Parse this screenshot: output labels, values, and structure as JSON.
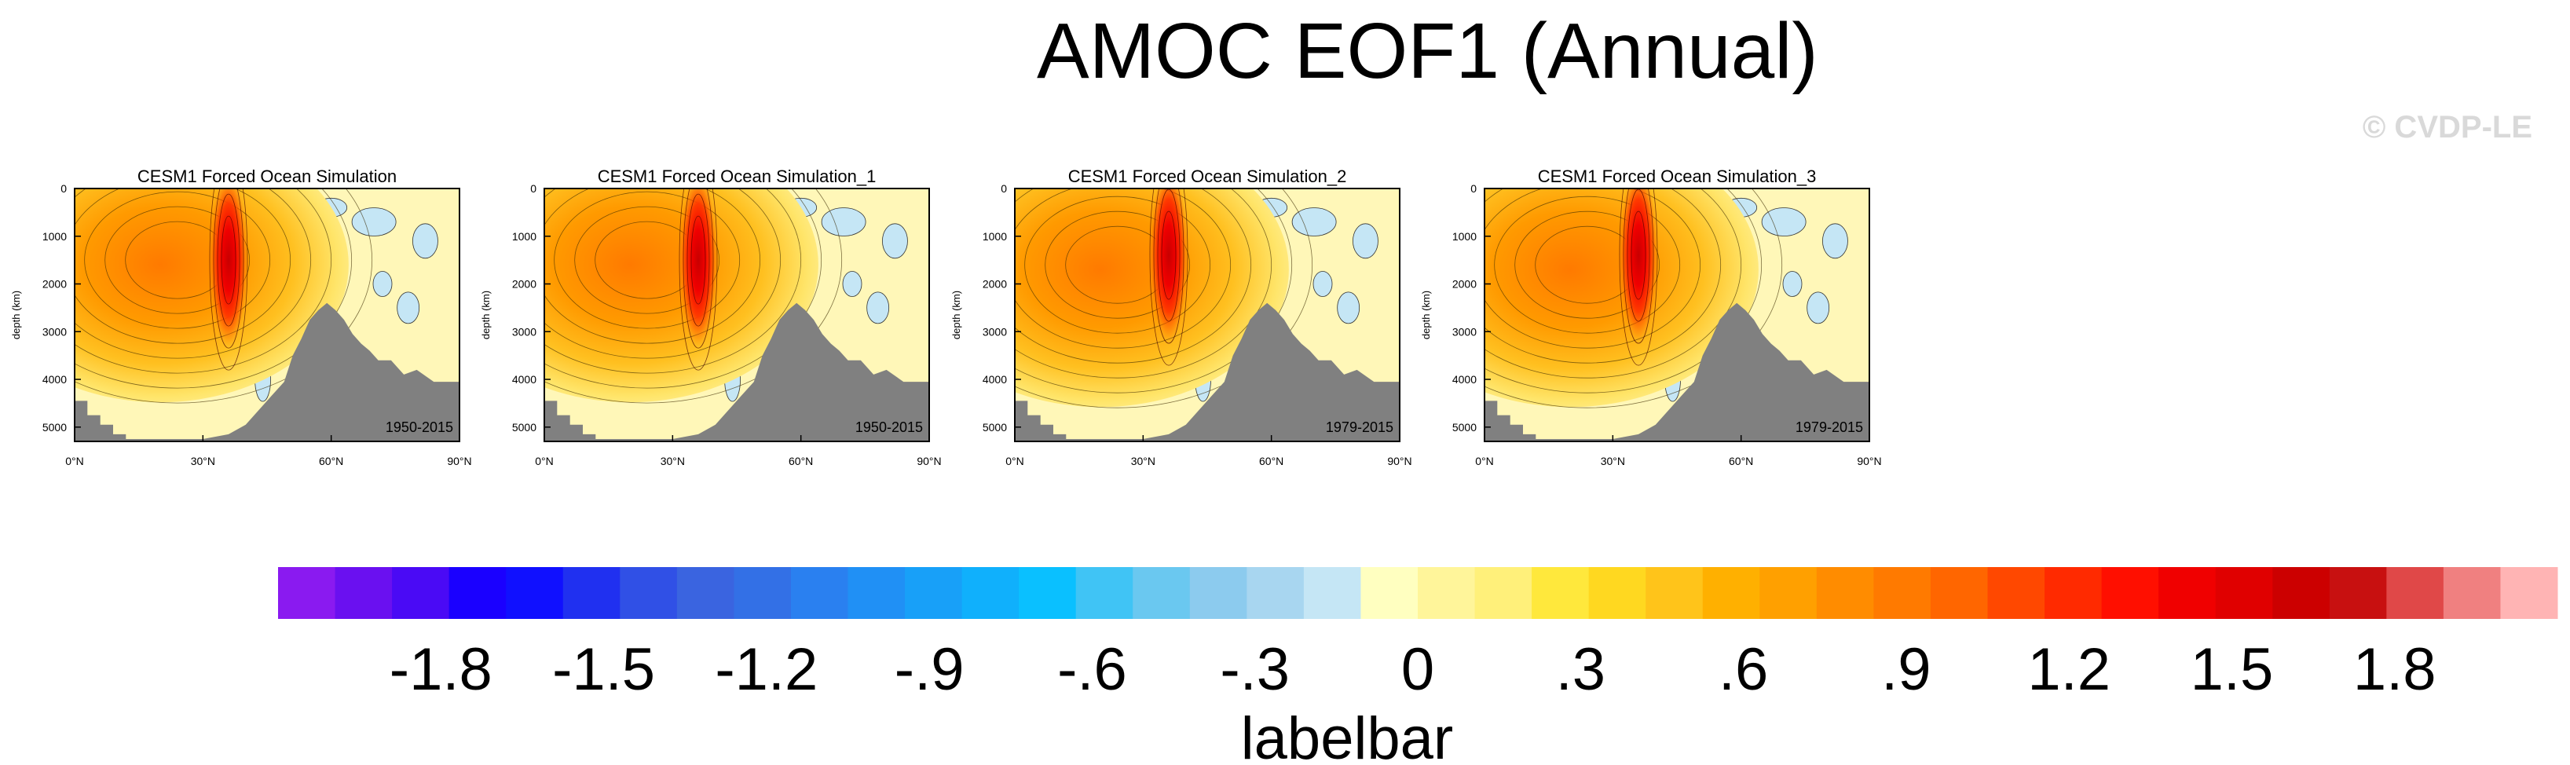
{
  "title": "AMOC EOF1 (Annual)",
  "watermark": "© CVDP-LE",
  "colors": {
    "land": "#808080",
    "positive_ramp": [
      "#ffffc0",
      "#fff280",
      "#ffe135",
      "#ffc91a",
      "#ffb000",
      "#ff9400",
      "#ff7a00",
      "#ff5200",
      "#ff2a00",
      "#f00000",
      "#c80000"
    ],
    "negative_ramp": [
      "#c8e6f5",
      "#a9d7f2",
      "#86c8f0",
      "#5ab4f0"
    ]
  },
  "chart_data": [
    {
      "type": "heatmap",
      "title": "CESM1 Forced Ocean Simulation",
      "period": "1950-2015",
      "xlabel": "",
      "ylabel": "depth (km)",
      "xlim": [
        0,
        90
      ],
      "ylim": [
        5300,
        0
      ],
      "x_ticks": [
        "0°N",
        "30°N",
        "60°N",
        "90°N"
      ],
      "y_ticks": [
        "0",
        "1000",
        "2000",
        "3000",
        "4000",
        "5000"
      ],
      "cell_max": {
        "lat": 36,
        "depth": 1500,
        "value": 1.8
      },
      "broad_max": {
        "lat": 20,
        "depth": 1600,
        "value": 0.9
      }
    },
    {
      "type": "heatmap",
      "title": "CESM1 Forced Ocean Simulation_1",
      "period": "1950-2015",
      "xlabel": "",
      "ylabel": "depth (km)",
      "xlim": [
        0,
        90
      ],
      "ylim": [
        5300,
        0
      ],
      "x_ticks": [
        "0°N",
        "30°N",
        "60°N",
        "90°N"
      ],
      "y_ticks": [
        "0",
        "1000",
        "2000",
        "3000",
        "4000",
        "5000"
      ],
      "cell_max": {
        "lat": 36,
        "depth": 1500,
        "value": 1.7
      },
      "broad_max": {
        "lat": 20,
        "depth": 1600,
        "value": 0.9
      }
    },
    {
      "type": "heatmap",
      "title": "CESM1 Forced Ocean Simulation_2",
      "period": "1979-2015",
      "xlabel": "",
      "ylabel": "depth (km)",
      "xlim": [
        0,
        90
      ],
      "ylim": [
        5300,
        0
      ],
      "x_ticks": [
        "0°N",
        "30°N",
        "60°N",
        "90°N"
      ],
      "y_ticks": [
        "0",
        "1000",
        "2000",
        "3000",
        "4000",
        "5000"
      ],
      "cell_max": {
        "lat": 36,
        "depth": 1400,
        "value": 1.9
      },
      "broad_max": {
        "lat": 20,
        "depth": 1700,
        "value": 1.0
      }
    },
    {
      "type": "heatmap",
      "title": "CESM1 Forced Ocean Simulation_3",
      "period": "1979-2015",
      "xlabel": "",
      "ylabel": "depth (km)",
      "xlim": [
        0,
        90
      ],
      "ylim": [
        5300,
        0
      ],
      "x_ticks": [
        "0°N",
        "30°N",
        "60°N",
        "90°N"
      ],
      "y_ticks": [
        "0",
        "1000",
        "2000",
        "3000",
        "4000",
        "5000"
      ],
      "cell_max": {
        "lat": 36,
        "depth": 1400,
        "value": 1.9
      },
      "broad_max": {
        "lat": 20,
        "depth": 1700,
        "value": 1.0
      }
    }
  ],
  "colorbar": {
    "label": "labelbar",
    "range": [
      -2.1,
      2.1
    ],
    "step": 0.1,
    "tick_labels": [
      "-1.8",
      "-1.5",
      "-1.2",
      "-.9",
      "-.6",
      "-.3",
      "0",
      ".3",
      ".6",
      ".9",
      "1.2",
      "1.5",
      "1.8"
    ],
    "tick_values": [
      -1.8,
      -1.5,
      -1.2,
      -0.9,
      -0.6,
      -0.3,
      0,
      0.3,
      0.6,
      0.9,
      1.2,
      1.5,
      1.8
    ],
    "colors": [
      "#8a1af0",
      "#6a10f0",
      "#4a0af5",
      "#1a00ff",
      "#1010ff",
      "#2030f0",
      "#3050e6",
      "#3a64e0",
      "#3370e6",
      "#2a80f0",
      "#2090f5",
      "#18a0f8",
      "#10b0fc",
      "#0ac0ff",
      "#40c4f5",
      "#6ac8f0",
      "#8ccbee",
      "#a8d6f0",
      "#c5e6f5",
      "#ffffc0",
      "#fff59a",
      "#fff07a",
      "#ffe83c",
      "#ffd820",
      "#ffc41a",
      "#ffb000",
      "#ffa000",
      "#ff8c00",
      "#ff7a00",
      "#ff6600",
      "#ff4800",
      "#ff2a00",
      "#ff0f00",
      "#f00000",
      "#e00000",
      "#cc0000",
      "#c81010",
      "#e04848",
      "#f08080",
      "#ffb4b4"
    ]
  }
}
